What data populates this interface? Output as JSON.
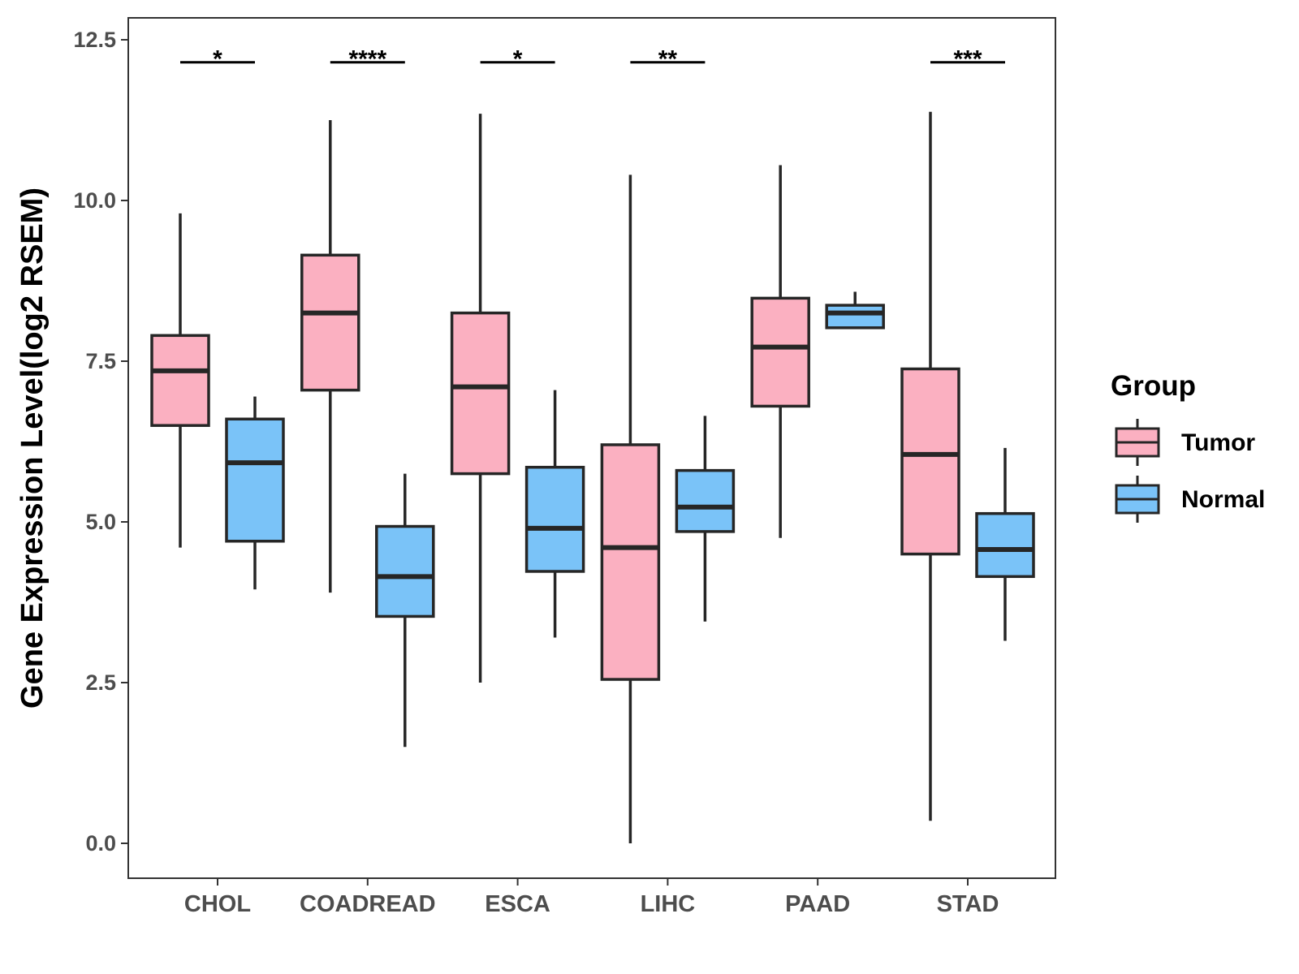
{
  "chart_data": {
    "type": "boxplot",
    "title": "",
    "xlabel": "",
    "ylabel": "Gene Expression Level(log2 RSEM)",
    "ylim": [
      -0.6,
      12.8
    ],
    "yticks": [
      0.0,
      2.5,
      5.0,
      7.5,
      10.0,
      12.5
    ],
    "ytick_labels": [
      "0.0",
      "2.5",
      "5.0",
      "7.5",
      "10.0",
      "12.5"
    ],
    "grid": false,
    "categories": [
      "CHOL",
      "COADREAD",
      "ESCA",
      "LIHC",
      "PAAD",
      "STAD"
    ],
    "legend": {
      "title": "Group",
      "position": "right",
      "entries": [
        {
          "name": "Tumor",
          "color": "#FBB0C1"
        },
        {
          "name": "Normal",
          "color": "#7AC3F8"
        }
      ]
    },
    "series": [
      {
        "name": "Tumor",
        "color": "#FBB0C1",
        "boxes": [
          {
            "category": "CHOL",
            "min": 4.6,
            "q1": 6.5,
            "median": 7.35,
            "q3": 7.9,
            "max": 9.8
          },
          {
            "category": "COADREAD",
            "min": 3.9,
            "q1": 7.05,
            "median": 8.25,
            "q3": 9.15,
            "max": 11.25
          },
          {
            "category": "ESCA",
            "min": 2.5,
            "q1": 5.75,
            "median": 7.1,
            "q3": 8.25,
            "max": 11.35
          },
          {
            "category": "LIHC",
            "min": 0.0,
            "q1": 2.55,
            "median": 4.6,
            "q3": 6.2,
            "max": 10.4
          },
          {
            "category": "PAAD",
            "min": 4.75,
            "q1": 6.8,
            "median": 7.72,
            "q3": 8.48,
            "max": 10.55
          },
          {
            "category": "STAD",
            "min": 0.35,
            "q1": 4.5,
            "median": 6.05,
            "q3": 7.38,
            "max": 11.38
          }
        ]
      },
      {
        "name": "Normal",
        "color": "#7AC3F8",
        "boxes": [
          {
            "category": "CHOL",
            "min": 3.95,
            "q1": 4.7,
            "median": 5.92,
            "q3": 6.6,
            "max": 6.95
          },
          {
            "category": "COADREAD",
            "min": 1.5,
            "q1": 3.53,
            "median": 4.15,
            "q3": 4.93,
            "max": 5.75
          },
          {
            "category": "ESCA",
            "min": 3.2,
            "q1": 4.23,
            "median": 4.9,
            "q3": 5.85,
            "max": 7.05
          },
          {
            "category": "LIHC",
            "min": 3.45,
            "q1": 4.85,
            "median": 5.23,
            "q3": 5.8,
            "max": 6.65
          },
          {
            "category": "PAAD",
            "min": 8.02,
            "q1": 8.02,
            "median": 8.25,
            "q3": 8.37,
            "max": 8.58
          },
          {
            "category": "STAD",
            "min": 3.15,
            "q1": 4.15,
            "median": 4.57,
            "q3": 5.13,
            "max": 6.15
          }
        ]
      }
    ],
    "annotations": [
      {
        "category": "CHOL",
        "label": "*",
        "y": 12.15
      },
      {
        "category": "COADREAD",
        "label": "****",
        "y": 12.15
      },
      {
        "category": "ESCA",
        "label": "*",
        "y": 12.15
      },
      {
        "category": "LIHC",
        "label": "**",
        "y": 12.15
      },
      {
        "category": "STAD",
        "label": "***",
        "y": 12.15
      }
    ]
  }
}
